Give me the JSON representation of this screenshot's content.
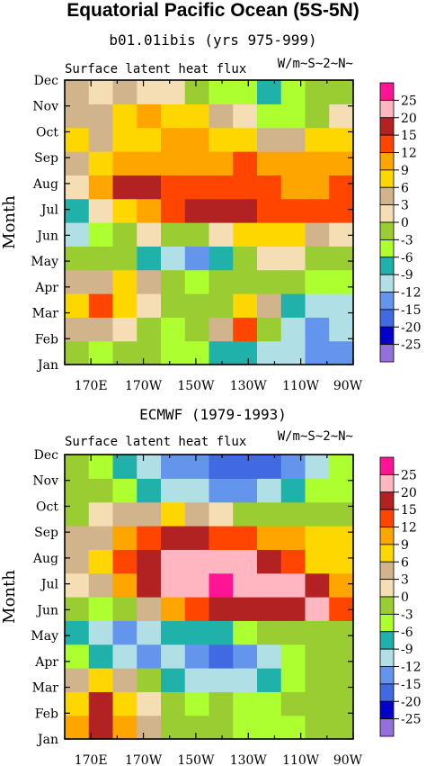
{
  "figure": {
    "title": "Equatorial Pacific Ocean (5S-5N)"
  },
  "colorbar": {
    "levels": [
      "25",
      "20",
      "15",
      "12",
      "9",
      "6",
      "3",
      "0",
      "-3",
      "-6",
      "-9",
      "-12",
      "-15",
      "-20",
      "-25"
    ],
    "colors": [
      "#ff1493",
      "#ffb6c1",
      "#b22222",
      "#ff4500",
      "#ffa500",
      "#ffd700",
      "#d2b48c",
      "#f5deb3",
      "#9acd32",
      "#adff2f",
      "#20b2aa",
      "#b0e0e6",
      "#6495ed",
      "#4169e1",
      "#0000cd",
      "#9370db"
    ]
  },
  "chart_data": [
    {
      "type": "heatmap",
      "title": "b01.01ibis (yrs 975-999)",
      "subtitle": "Surface latent heat flux",
      "units": "W/m~S~2~N~",
      "ylabel": "Month",
      "xlabel": "",
      "x_ticks": [
        "170E",
        "170W",
        "150W",
        "130W",
        "110W",
        "90W"
      ],
      "y_ticks": [
        "Jan",
        "Feb",
        "Mar",
        "Apr",
        "May",
        "Jun",
        "Jul",
        "Aug",
        "Sep",
        "Oct",
        "Nov",
        "Dec"
      ],
      "x": [
        "160E",
        "170E",
        "180",
        "170W",
        "160W",
        "150W",
        "140W",
        "130W",
        "120W",
        "110W",
        "100W",
        "90W"
      ],
      "y": [
        "Jan",
        "Feb",
        "Mar",
        "Apr",
        "May",
        "Jun",
        "Jul",
        "Aug",
        "Sep",
        "Oct",
        "Nov",
        "Dec"
      ],
      "z": [
        [
          -3,
          -6,
          -3,
          -3,
          -6,
          -6,
          -9,
          -9,
          -12,
          -12,
          -15,
          -15
        ],
        [
          3,
          3,
          0,
          -3,
          -6,
          -3,
          3,
          12,
          -3,
          -12,
          -15,
          -12
        ],
        [
          6,
          12,
          6,
          0,
          -3,
          -3,
          -3,
          6,
          3,
          -9,
          -12,
          -12
        ],
        [
          3,
          3,
          6,
          3,
          -3,
          -6,
          -3,
          -3,
          -3,
          -3,
          -6,
          -6
        ],
        [
          -3,
          -3,
          -3,
          -9,
          -12,
          -15,
          -9,
          -3,
          0,
          0,
          -3,
          -3
        ],
        [
          -12,
          -6,
          -3,
          0,
          -3,
          -3,
          0,
          6,
          6,
          6,
          3,
          0
        ],
        [
          -9,
          0,
          6,
          9,
          12,
          15,
          15,
          15,
          12,
          12,
          12,
          12
        ],
        [
          0,
          9,
          15,
          15,
          12,
          12,
          12,
          12,
          12,
          9,
          9,
          12
        ],
        [
          3,
          6,
          9,
          9,
          9,
          9,
          9,
          12,
          9,
          9,
          9,
          9
        ],
        [
          6,
          3,
          6,
          6,
          9,
          9,
          6,
          6,
          3,
          3,
          6,
          6
        ],
        [
          3,
          3,
          6,
          9,
          6,
          6,
          3,
          0,
          -6,
          -6,
          -3,
          0
        ],
        [
          3,
          0,
          3,
          0,
          0,
          -3,
          -6,
          -6,
          -9,
          -6,
          -3,
          -3
        ]
      ]
    },
    {
      "type": "heatmap",
      "title": "ECMWF (1979-1993)",
      "subtitle": "Surface latent heat flux",
      "units": "W/m~S~2~N~",
      "ylabel": "Month",
      "xlabel": "",
      "x_ticks": [
        "170E",
        "170W",
        "150W",
        "130W",
        "110W",
        "90W"
      ],
      "y_ticks": [
        "Jan",
        "Feb",
        "Mar",
        "Apr",
        "May",
        "Jun",
        "Jul",
        "Aug",
        "Sep",
        "Oct",
        "Nov",
        "Dec"
      ],
      "x": [
        "160E",
        "170E",
        "180",
        "170W",
        "160W",
        "150W",
        "140W",
        "130W",
        "120W",
        "110W",
        "100W",
        "90W"
      ],
      "y": [
        "Jan",
        "Feb",
        "Mar",
        "Apr",
        "May",
        "Jun",
        "Jul",
        "Aug",
        "Sep",
        "Oct",
        "Nov",
        "Dec"
      ],
      "z": [
        [
          9,
          15,
          9,
          3,
          -3,
          -3,
          -3,
          -6,
          -6,
          -6,
          -3,
          -3
        ],
        [
          6,
          15,
          6,
          0,
          -3,
          -6,
          -3,
          -6,
          -6,
          -3,
          -3,
          -3
        ],
        [
          3,
          6,
          3,
          -3,
          -9,
          -12,
          -12,
          -12,
          -9,
          -6,
          -3,
          -3
        ],
        [
          -6,
          -9,
          -12,
          -15,
          -12,
          -15,
          -20,
          -15,
          -12,
          -6,
          -3,
          -3
        ],
        [
          -9,
          -12,
          -15,
          -12,
          -9,
          -9,
          -9,
          -6,
          -3,
          -3,
          -3,
          -3
        ],
        [
          -3,
          -6,
          -3,
          3,
          9,
          12,
          15,
          15,
          15,
          15,
          20,
          12
        ],
        [
          0,
          3,
          9,
          15,
          20,
          20,
          25,
          20,
          20,
          20,
          15,
          9
        ],
        [
          3,
          6,
          12,
          15,
          20,
          20,
          20,
          20,
          15,
          12,
          6,
          6
        ],
        [
          3,
          3,
          9,
          12,
          15,
          15,
          12,
          12,
          9,
          9,
          6,
          6
        ],
        [
          -3,
          0,
          3,
          3,
          6,
          3,
          0,
          -3,
          -3,
          -3,
          -3,
          -3
        ],
        [
          -3,
          -3,
          -6,
          -9,
          -12,
          -12,
          -15,
          -15,
          -12,
          -9,
          -6,
          -6
        ],
        [
          -3,
          -6,
          -9,
          -12,
          -15,
          -15,
          -20,
          -20,
          -20,
          -15,
          -12,
          -6
        ]
      ]
    }
  ]
}
